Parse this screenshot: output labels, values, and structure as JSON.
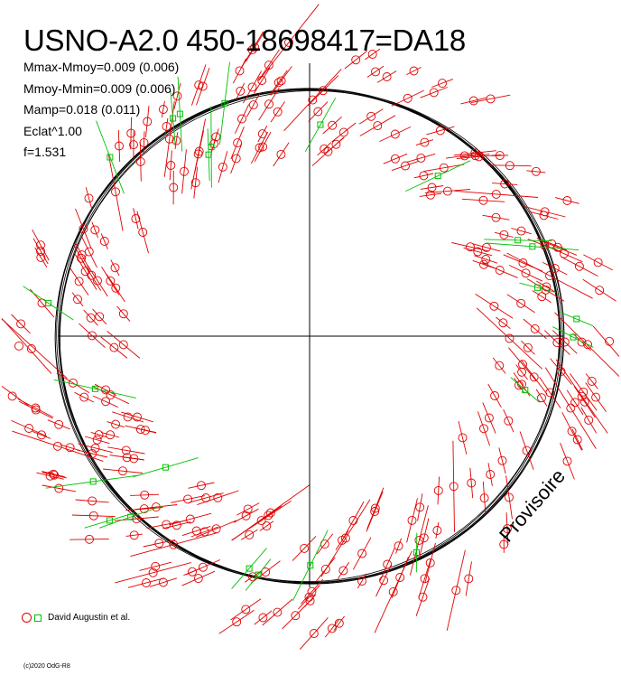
{
  "title": "USNO-A2.0 450-18698417=DA18",
  "stats": [
    "Mmax-Mmoy=0.009 (0.006)",
    "Mmoy-Mmin=0.009 (0.006)",
    "Mamp=0.018 (0.011)",
    "Eclat^1.00",
    "f=1.531"
  ],
  "legend_label": "David Augustin et al.",
  "watermark": "Provisoire",
  "copyright": "(c)2020 OdG-R8",
  "colors": {
    "observer1": "#e00000",
    "observer2": "#00c000",
    "curve": "#000000"
  },
  "chart_data": {
    "type": "scatter",
    "projection": "polar phase plot",
    "mean_radius": 1.0,
    "amplitude_fraction": 0.018,
    "series": [
      {
        "name": "David Augustin et al.",
        "marker": "circle",
        "color": "#e00000",
        "points": 290
      },
      {
        "name": "David Augustin et al.",
        "marker": "square",
        "color": "#00c000",
        "points": 24
      }
    ]
  }
}
